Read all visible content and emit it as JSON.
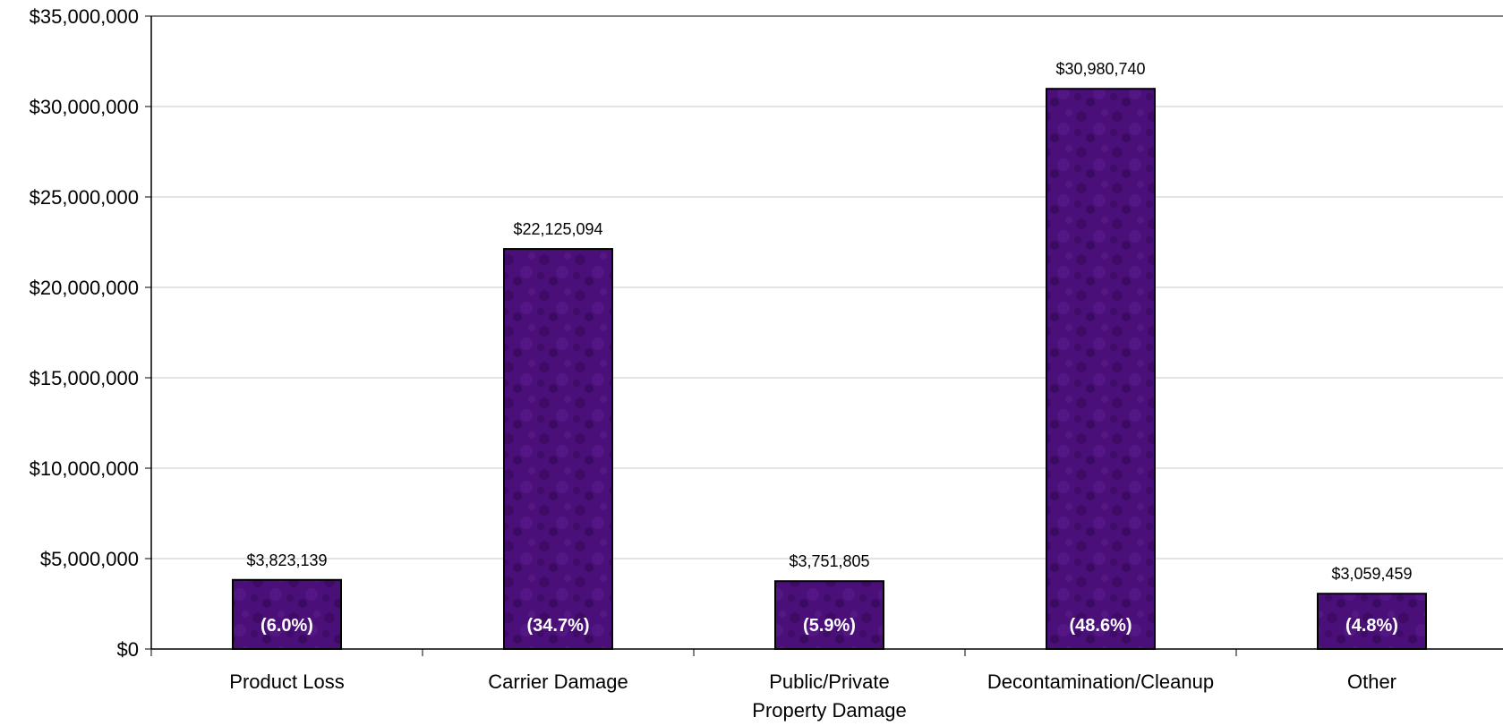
{
  "chart_data": {
    "type": "bar",
    "categories": [
      [
        "Product Loss"
      ],
      [
        "Carrier Damage"
      ],
      [
        "Public/Private",
        "Property Damage"
      ],
      [
        "Decontamination/Cleanup"
      ],
      [
        "Other"
      ]
    ],
    "values": [
      3823139,
      22125094,
      3751805,
      30980740,
      3059459
    ],
    "value_labels": [
      "$3,823,139",
      "$22,125,094",
      "$3,751,805",
      "$30,980,740",
      "$3,059,459"
    ],
    "percent_labels": [
      "(6.0%)",
      "(34.7%)",
      "(5.9%)",
      "(48.6%)",
      "(4.8%)"
    ],
    "ylim": [
      0,
      35000000
    ],
    "yticks": [
      0,
      5000000,
      10000000,
      15000000,
      20000000,
      25000000,
      30000000,
      35000000
    ],
    "ytick_labels": [
      "$0",
      "$5,000,000",
      "$10,000,000",
      "$15,000,000",
      "$20,000,000",
      "$25,000,000",
      "$30,000,000",
      "$35,000,000"
    ],
    "grid": true,
    "bar_color": "#4a0f78",
    "bar_outline": "#000000",
    "grid_color": "#c8c8c8",
    "title": "",
    "xlabel": "",
    "ylabel": ""
  }
}
